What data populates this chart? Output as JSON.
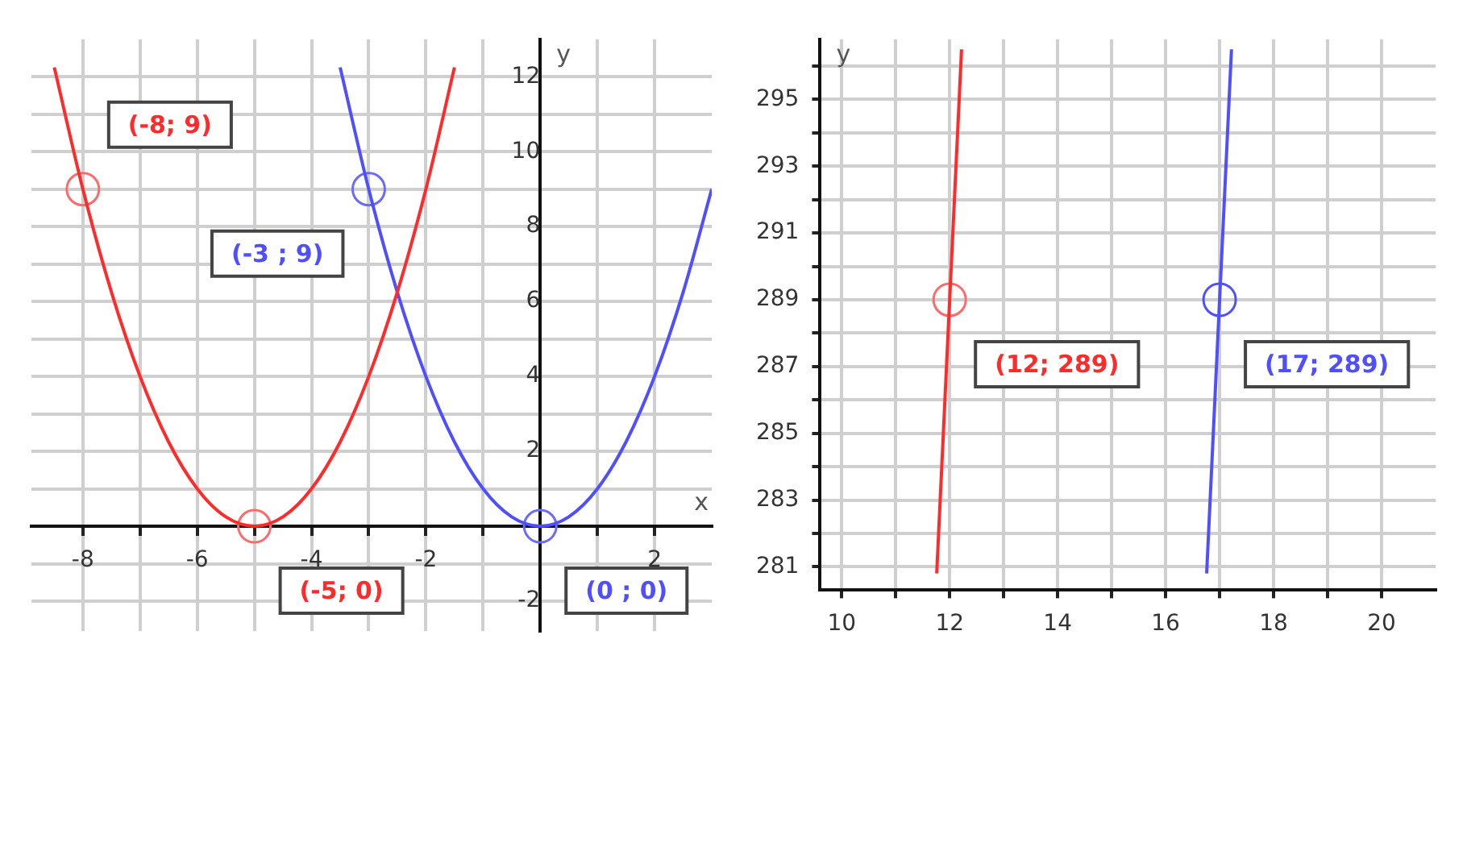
{
  "chart_data": [
    {
      "type": "line",
      "xlabel": "x",
      "ylabel": "y",
      "xlim": [
        -8.9,
        3
      ],
      "ylim": [
        -2.8,
        13
      ],
      "grid": true,
      "xticks": [
        -8,
        {
          "value": -7,
          "label": null
        },
        -6,
        {
          "value": -5,
          "label": null
        },
        -4,
        {
          "value": -3,
          "label": null
        },
        -2,
        {
          "value": -1,
          "label": null
        },
        {
          "value": 0,
          "label": null
        },
        {
          "value": 1,
          "label": null
        },
        2
      ],
      "yticks": [
        -2,
        {
          "value": -1,
          "label": null
        },
        {
          "value": 0,
          "label": null
        },
        {
          "value": 1,
          "label": null
        },
        2,
        {
          "value": 3,
          "label": null
        },
        4,
        {
          "value": 5,
          "label": null
        },
        6,
        {
          "value": 7,
          "label": null
        },
        8,
        {
          "value": 9,
          "label": null
        },
        10,
        {
          "value": 11,
          "label": null
        },
        12
      ],
      "series": [
        {
          "type": "line",
          "color": "#ff2a2a",
          "x": [
            -8.5,
            -8,
            -7.5,
            -7,
            -6.5,
            -6,
            -5.5,
            -5,
            -4.5,
            -4,
            -3.5,
            -3,
            -2.5,
            -2,
            -1.5
          ],
          "values": [
            12.25,
            9,
            6.25,
            4,
            2.25,
            1,
            0.25,
            0,
            0.25,
            1,
            2.25,
            4,
            6.25,
            9,
            12.25
          ]
        },
        {
          "type": "line",
          "color": "#4f4fff",
          "x": [
            -3.5,
            -3,
            -2.5,
            -2,
            -1.5,
            -1,
            -0.5,
            0,
            0.5,
            1,
            1.5,
            2,
            2.5,
            3
          ],
          "values": [
            12.25,
            9,
            6.25,
            4,
            2.25,
            1,
            0.25,
            0,
            0.25,
            1,
            2.25,
            4,
            6.25,
            9
          ]
        },
        {
          "type": "scatter",
          "marker": "circle",
          "color": "#ff6a6a",
          "x": [
            -8,
            -5
          ],
          "values": [
            9,
            0
          ]
        },
        {
          "type": "scatter",
          "marker": "circle",
          "color": "#6a6aff",
          "x": [
            -3,
            0
          ],
          "values": [
            9,
            0
          ]
        }
      ],
      "annotations": [
        {
          "text": "(-8; 9)",
          "x": -8,
          "y": 9
        },
        {
          "text": "(-3 ; 9)",
          "x": -3,
          "y": 9
        },
        {
          "text": "(-5; 0)",
          "x": -5,
          "y": 0
        },
        {
          "text": "(0 ; 0)",
          "x": 0,
          "y": 0
        }
      ]
    },
    {
      "type": "line",
      "ylabel": "y",
      "xlim": [
        9.6,
        21
      ],
      "ylim": [
        280.3,
        296.8
      ],
      "grid": true,
      "xticks": [
        10,
        {
          "value": 11,
          "label": null
        },
        12,
        {
          "value": 13,
          "label": null
        },
        14,
        {
          "value": 15,
          "label": null
        },
        16,
        {
          "value": 17,
          "label": null
        },
        18,
        {
          "value": 19,
          "label": null
        },
        20
      ],
      "yticks": [
        281,
        {
          "value": 282,
          "label": null
        },
        283,
        {
          "value": 284,
          "label": null
        },
        285,
        {
          "value": 286,
          "label": null
        },
        287,
        {
          "value": 288,
          "label": null
        },
        289,
        {
          "value": 290,
          "label": null
        },
        291,
        {
          "value": 292,
          "label": null
        },
        293,
        {
          "value": 294,
          "label": null
        },
        295,
        {
          "value": 296,
          "label": null
        }
      ],
      "series": [
        {
          "type": "line",
          "color": "#ff2a2a",
          "x": [
            11.76,
            12,
            12.22
          ],
          "values": [
            280.8,
            289,
            296.5
          ]
        },
        {
          "type": "line",
          "color": "#4f4fff",
          "x": [
            16.76,
            17,
            17.22
          ],
          "values": [
            280.8,
            289,
            296.5
          ]
        },
        {
          "type": "scatter",
          "marker": "circle",
          "color": "#ff6a6a",
          "x": [
            12
          ],
          "values": [
            289
          ]
        },
        {
          "type": "scatter",
          "marker": "circle",
          "color": "#4f4fff",
          "x": [
            17
          ],
          "values": [
            289
          ]
        }
      ],
      "annotations": [
        {
          "text": "(12; 289)",
          "x": 12,
          "y": 289
        },
        {
          "text": "(17; 289)",
          "x": 17,
          "y": 289
        }
      ]
    }
  ]
}
